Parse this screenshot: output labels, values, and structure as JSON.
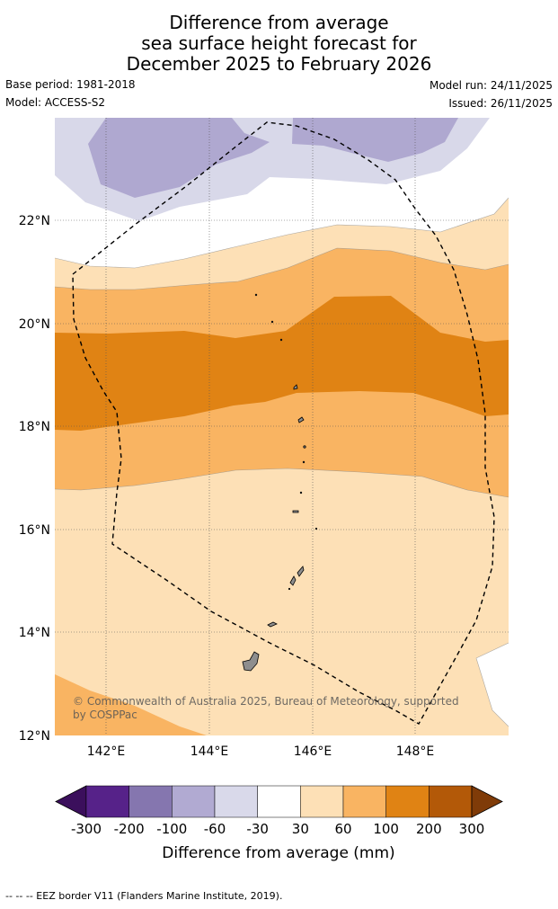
{
  "title": {
    "line1": "Difference from average",
    "line2": "sea surface height forecast for",
    "line3": "December 2025 to February 2026"
  },
  "meta": {
    "base_period": "Base period: 1981-2018",
    "model": "Model: ACCESS-S2",
    "model_run": "Model run: 24/11/2025",
    "issued": "Issued: 26/11/2025"
  },
  "map": {
    "lon_range": [
      141,
      149.8
    ],
    "lat_range": [
      12,
      24
    ],
    "lat_labels": [
      "12°N",
      "14°N",
      "16°N",
      "18°N",
      "20°N",
      "22°N"
    ],
    "lon_labels": [
      "142°E",
      "144°E",
      "146°E",
      "148°E"
    ],
    "copyright_line1": "© Commonwealth of Australia 2025, Bureau of Meteorology, supported",
    "copyright_line2": "by COSPPac",
    "colors": {
      "m100": "#afa8d0",
      "m60": "#d8d8e9",
      "p30": "#fde0b6",
      "p60": "#f9b462",
      "p100": "#e08314",
      "land": "#8e8e8e"
    }
  },
  "colorbar": {
    "ticks": [
      "-300",
      "-200",
      "-100",
      "-60",
      "-30",
      "30",
      "60",
      "100",
      "200",
      "300"
    ],
    "colors": [
      "#3b0f5c",
      "#562289",
      "#8576af",
      "#b1aad2",
      "#d9d9ea",
      "#ffffff",
      "#fde0b6",
      "#f9b462",
      "#e08314",
      "#b35908",
      "#7f3b08"
    ],
    "label": "Difference from average (mm)"
  },
  "footer": {
    "legend_text": "--  --  -- EEZ border V11 (Flanders Marine Institute, 2019)."
  }
}
